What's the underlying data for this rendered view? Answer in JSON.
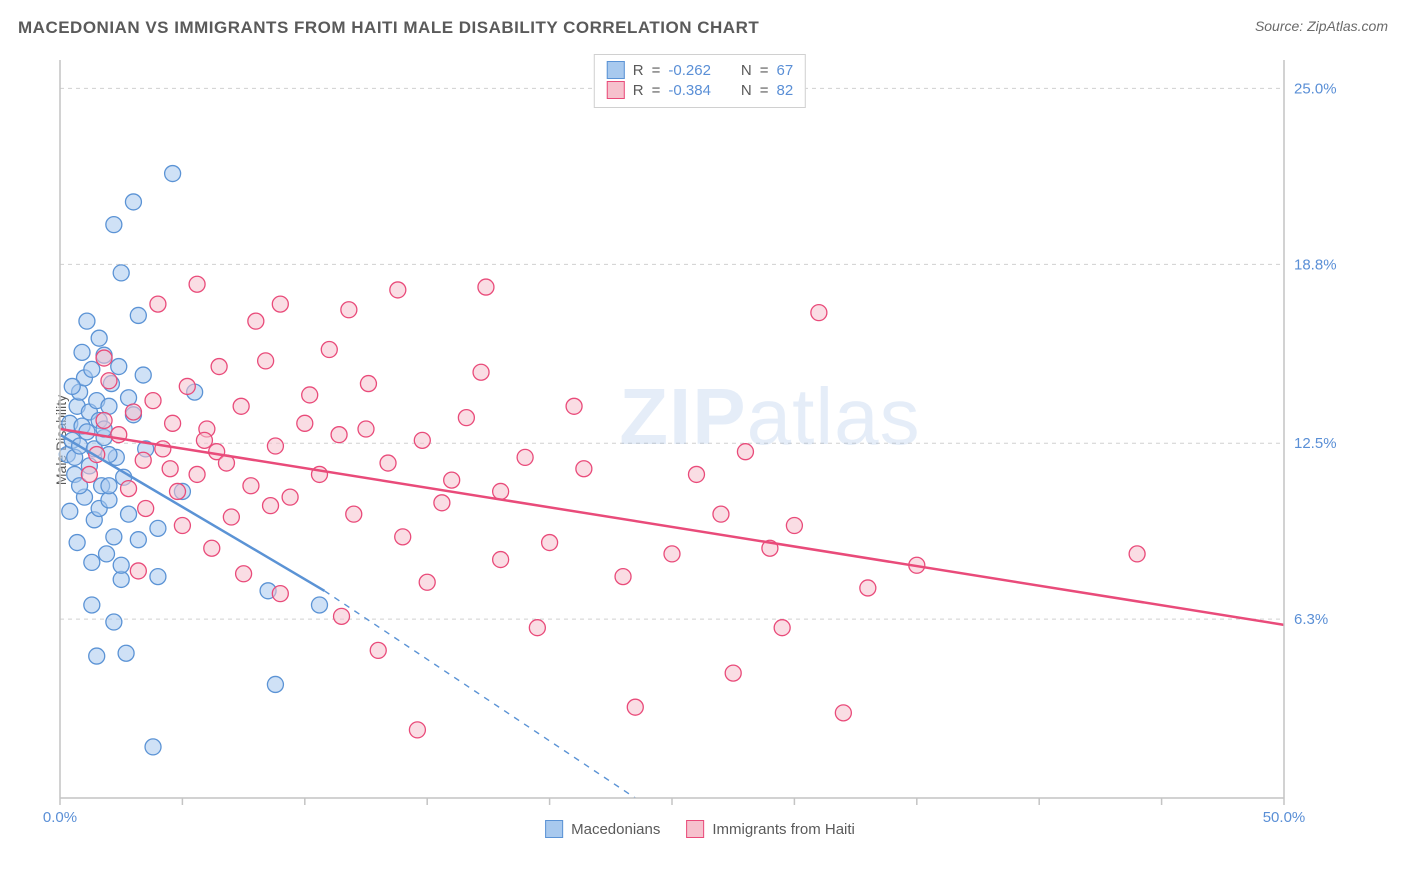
{
  "title": "MACEDONIAN VS IMMIGRANTS FROM HAITI MALE DISABILITY CORRELATION CHART",
  "source_label": "Source: ZipAtlas.com",
  "y_axis_label": "Male Disability",
  "watermark_a": "ZIP",
  "watermark_b": "atlas",
  "chart": {
    "type": "scatter",
    "xlim": [
      0,
      50
    ],
    "ylim": [
      0,
      26
    ],
    "x_ticks": [
      0,
      5,
      10,
      15,
      20,
      25,
      30,
      35,
      40,
      45,
      50
    ],
    "x_tick_labels": {
      "0": "0.0%",
      "50": "50.0%"
    },
    "y_gridlines": [
      6.3,
      12.5,
      18.8,
      25.0
    ],
    "y_tick_labels": [
      "6.3%",
      "12.5%",
      "18.8%",
      "25.0%"
    ],
    "background_color": "#ffffff",
    "grid_color": "#d0d0d0",
    "axis_color": "#c4c4c4",
    "tick_label_color": "#5a8fd6",
    "marker_radius": 8,
    "marker_opacity": 0.55,
    "line_width": 2,
    "series": [
      {
        "name": "Macedonians",
        "fill": "#a8c9ee",
        "stroke": "#5b93d5",
        "r_value": "-0.262",
        "n_value": "67",
        "trend": {
          "x1": 0,
          "y1": 12.8,
          "x2": 10.8,
          "y2": 7.3,
          "dashed_ext": {
            "x2": 23.5,
            "y2": 0
          }
        },
        "points": [
          [
            0.3,
            12.1
          ],
          [
            0.4,
            13.2
          ],
          [
            0.5,
            12.6
          ],
          [
            0.6,
            11.4
          ],
          [
            0.7,
            13.8
          ],
          [
            0.6,
            12.0
          ],
          [
            0.8,
            12.4
          ],
          [
            0.8,
            14.3
          ],
          [
            0.9,
            13.1
          ],
          [
            1.0,
            10.6
          ],
          [
            1.0,
            14.8
          ],
          [
            1.1,
            12.9
          ],
          [
            1.2,
            11.7
          ],
          [
            1.2,
            13.6
          ],
          [
            1.3,
            15.1
          ],
          [
            1.4,
            9.8
          ],
          [
            1.4,
            12.3
          ],
          [
            1.5,
            14.0
          ],
          [
            1.6,
            10.2
          ],
          [
            1.6,
            13.3
          ],
          [
            1.7,
            11.0
          ],
          [
            1.8,
            15.6
          ],
          [
            1.8,
            12.7
          ],
          [
            1.9,
            8.6
          ],
          [
            2.0,
            13.8
          ],
          [
            2.0,
            10.5
          ],
          [
            2.1,
            14.6
          ],
          [
            2.2,
            9.2
          ],
          [
            2.3,
            12.0
          ],
          [
            2.4,
            15.2
          ],
          [
            2.5,
            7.7
          ],
          [
            2.5,
            8.2
          ],
          [
            2.6,
            11.3
          ],
          [
            2.8,
            10.0
          ],
          [
            3.0,
            13.5
          ],
          [
            3.2,
            9.1
          ],
          [
            3.4,
            14.9
          ],
          [
            3.0,
            21.0
          ],
          [
            2.5,
            18.5
          ],
          [
            3.2,
            17.0
          ],
          [
            1.1,
            16.8
          ],
          [
            1.6,
            16.2
          ],
          [
            0.9,
            15.7
          ],
          [
            4.6,
            22.0
          ],
          [
            5.0,
            10.8
          ],
          [
            5.5,
            14.3
          ],
          [
            2.2,
            20.2
          ],
          [
            1.3,
            8.3
          ],
          [
            1.3,
            6.8
          ],
          [
            1.5,
            5.0
          ],
          [
            2.7,
            5.1
          ],
          [
            3.8,
            1.8
          ],
          [
            8.5,
            7.3
          ],
          [
            10.6,
            6.8
          ],
          [
            8.8,
            4.0
          ],
          [
            4.0,
            7.8
          ],
          [
            0.7,
            9.0
          ],
          [
            0.4,
            10.1
          ],
          [
            0.5,
            14.5
          ],
          [
            0.8,
            11.0
          ],
          [
            2.0,
            12.1
          ],
          [
            2.8,
            14.1
          ],
          [
            3.5,
            12.3
          ],
          [
            2.0,
            11.0
          ],
          [
            1.8,
            13.0
          ],
          [
            4.0,
            9.5
          ],
          [
            2.2,
            6.2
          ]
        ]
      },
      {
        "name": "Immigrants from Haiti",
        "fill": "#f6c1cd",
        "stroke": "#e94b7a",
        "r_value": "-0.384",
        "n_value": "82",
        "trend": {
          "x1": 0,
          "y1": 13.0,
          "x2": 50,
          "y2": 6.1
        },
        "points": [
          [
            1.8,
            13.3
          ],
          [
            2.4,
            12.8
          ],
          [
            3.0,
            13.6
          ],
          [
            3.4,
            11.9
          ],
          [
            3.8,
            14.0
          ],
          [
            4.2,
            12.3
          ],
          [
            4.8,
            10.8
          ],
          [
            5.2,
            14.5
          ],
          [
            5.6,
            11.4
          ],
          [
            6.0,
            13.0
          ],
          [
            6.4,
            12.2
          ],
          [
            7.0,
            9.9
          ],
          [
            7.4,
            13.8
          ],
          [
            7.8,
            11.0
          ],
          [
            8.4,
            15.4
          ],
          [
            8.8,
            12.4
          ],
          [
            9.4,
            10.6
          ],
          [
            10.0,
            13.2
          ],
          [
            10.6,
            11.4
          ],
          [
            11.4,
            12.8
          ],
          [
            12.0,
            10.0
          ],
          [
            12.6,
            14.6
          ],
          [
            13.4,
            11.8
          ],
          [
            14.0,
            9.2
          ],
          [
            14.8,
            12.6
          ],
          [
            15.6,
            10.4
          ],
          [
            16.6,
            13.4
          ],
          [
            17.2,
            15.0
          ],
          [
            18.0,
            10.8
          ],
          [
            19.0,
            12.0
          ],
          [
            20.0,
            9.0
          ],
          [
            21.4,
            11.6
          ],
          [
            23.0,
            7.8
          ],
          [
            25.0,
            8.6
          ],
          [
            27.0,
            10.0
          ],
          [
            28.0,
            12.2
          ],
          [
            29.0,
            8.8
          ],
          [
            30.0,
            9.6
          ],
          [
            31.0,
            17.1
          ],
          [
            33.0,
            7.4
          ],
          [
            35.0,
            8.2
          ],
          [
            44.0,
            8.6
          ],
          [
            4.0,
            17.4
          ],
          [
            5.6,
            18.1
          ],
          [
            8.0,
            16.8
          ],
          [
            9.0,
            17.4
          ],
          [
            11.8,
            17.2
          ],
          [
            13.8,
            17.9
          ],
          [
            17.4,
            18.0
          ],
          [
            11.0,
            15.8
          ],
          [
            6.5,
            15.2
          ],
          [
            5.0,
            9.6
          ],
          [
            6.2,
            8.8
          ],
          [
            7.5,
            7.9
          ],
          [
            9.0,
            7.2
          ],
          [
            11.5,
            6.4
          ],
          [
            13.0,
            5.2
          ],
          [
            3.5,
            10.2
          ],
          [
            4.5,
            11.6
          ],
          [
            1.5,
            12.1
          ],
          [
            2.0,
            14.7
          ],
          [
            2.8,
            10.9
          ],
          [
            1.2,
            11.4
          ],
          [
            23.5,
            3.2
          ],
          [
            27.5,
            4.4
          ],
          [
            32.0,
            3.0
          ],
          [
            15.0,
            7.6
          ],
          [
            19.5,
            6.0
          ],
          [
            14.6,
            2.4
          ],
          [
            1.8,
            15.5
          ],
          [
            10.2,
            14.2
          ],
          [
            12.5,
            13.0
          ],
          [
            5.9,
            12.6
          ],
          [
            8.6,
            10.3
          ],
          [
            6.8,
            11.8
          ],
          [
            21.0,
            13.8
          ],
          [
            26.0,
            11.4
          ],
          [
            3.2,
            8.0
          ],
          [
            4.6,
            13.2
          ],
          [
            29.5,
            6.0
          ],
          [
            16.0,
            11.2
          ],
          [
            18.0,
            8.4
          ]
        ]
      }
    ]
  },
  "stats_labels": {
    "r": "R",
    "n": "N",
    "eq": "="
  },
  "legend_labels": {
    "series1": "Macedonians",
    "series2": "Immigrants from Haiti"
  }
}
